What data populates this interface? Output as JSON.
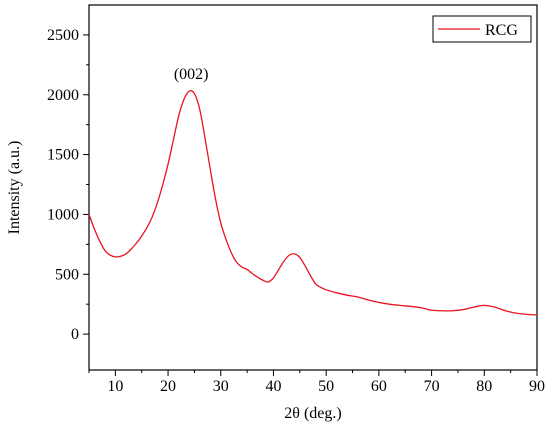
{
  "chart_data": {
    "type": "line",
    "title": "",
    "xlabel": "2θ (deg.)",
    "ylabel": "Intensity (a.u.)",
    "xlim": [
      5,
      90
    ],
    "ylim": [
      -300,
      2750
    ],
    "x_ticks": [
      10,
      20,
      30,
      40,
      50,
      60,
      70,
      80,
      90
    ],
    "y_ticks": [
      0,
      500,
      1000,
      1500,
      2000,
      2500
    ],
    "grid": false,
    "legend_position": "top-right",
    "series": [
      {
        "name": "RCG",
        "color": "#e8141c",
        "points": [
          [
            5,
            1000
          ],
          [
            6,
            880
          ],
          [
            7,
            780
          ],
          [
            8,
            700
          ],
          [
            9,
            660
          ],
          [
            10,
            645
          ],
          [
            11,
            650
          ],
          [
            12,
            670
          ],
          [
            13,
            710
          ],
          [
            14,
            760
          ],
          [
            15,
            820
          ],
          [
            16,
            890
          ],
          [
            17,
            980
          ],
          [
            18,
            1100
          ],
          [
            19,
            1250
          ],
          [
            20,
            1420
          ],
          [
            21,
            1620
          ],
          [
            22,
            1820
          ],
          [
            23,
            1960
          ],
          [
            24,
            2030
          ],
          [
            25,
            2010
          ],
          [
            26,
            1880
          ],
          [
            27,
            1640
          ],
          [
            28,
            1380
          ],
          [
            29,
            1130
          ],
          [
            30,
            930
          ],
          [
            31,
            790
          ],
          [
            32,
            680
          ],
          [
            33,
            600
          ],
          [
            34,
            560
          ],
          [
            35,
            540
          ],
          [
            36,
            505
          ],
          [
            37,
            475
          ],
          [
            38,
            450
          ],
          [
            39,
            435
          ],
          [
            40,
            470
          ],
          [
            41,
            540
          ],
          [
            42,
            610
          ],
          [
            43,
            660
          ],
          [
            44,
            670
          ],
          [
            45,
            640
          ],
          [
            46,
            570
          ],
          [
            47,
            490
          ],
          [
            48,
            420
          ],
          [
            49,
            390
          ],
          [
            50,
            370
          ],
          [
            52,
            345
          ],
          [
            54,
            325
          ],
          [
            56,
            310
          ],
          [
            58,
            285
          ],
          [
            60,
            265
          ],
          [
            62,
            250
          ],
          [
            64,
            240
          ],
          [
            66,
            232
          ],
          [
            68,
            220
          ],
          [
            70,
            200
          ],
          [
            72,
            195
          ],
          [
            74,
            195
          ],
          [
            76,
            205
          ],
          [
            78,
            225
          ],
          [
            80,
            240
          ],
          [
            82,
            225
          ],
          [
            84,
            195
          ],
          [
            86,
            175
          ],
          [
            88,
            165
          ],
          [
            90,
            160
          ]
        ]
      }
    ],
    "annotations": [
      {
        "text": "(002)",
        "x": 24,
        "y": 2030
      }
    ]
  }
}
